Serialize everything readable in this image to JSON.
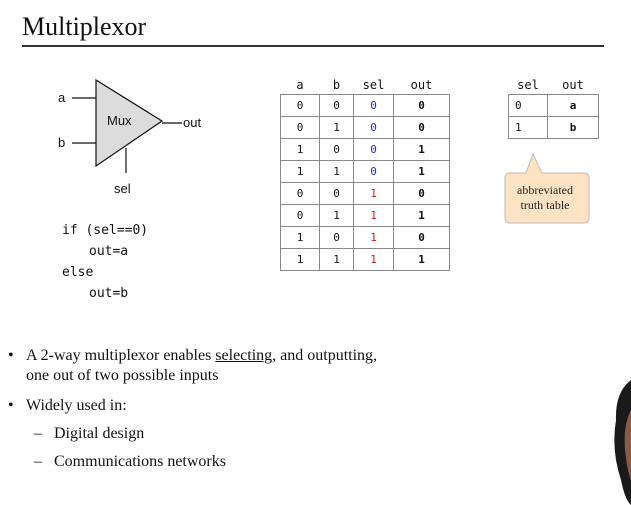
{
  "slide": {
    "title": "Multiplexor"
  },
  "mux": {
    "label": "Mux",
    "input_a": "a",
    "input_b": "b",
    "output": "out",
    "select": "sel"
  },
  "code": {
    "line1": "if (sel==0)",
    "line2": "out=a",
    "line3": "else",
    "line4": "out=b"
  },
  "truth_table": {
    "headers": [
      "a",
      "b",
      "sel",
      "out"
    ],
    "rows": [
      [
        "0",
        "0",
        "0",
        "0"
      ],
      [
        "0",
        "1",
        "0",
        "0"
      ],
      [
        "1",
        "0",
        "0",
        "1"
      ],
      [
        "1",
        "1",
        "0",
        "1"
      ],
      [
        "0",
        "0",
        "1",
        "0"
      ],
      [
        "0",
        "1",
        "1",
        "1"
      ],
      [
        "1",
        "0",
        "1",
        "0"
      ],
      [
        "1",
        "1",
        "1",
        "1"
      ]
    ],
    "sel_color_0": "#1f2fd6",
    "sel_color_1": "#cc1a1a"
  },
  "abbrev_table": {
    "headers": [
      "sel",
      "out"
    ],
    "rows": [
      [
        "0",
        "a"
      ],
      [
        "1",
        "b"
      ]
    ]
  },
  "callout": {
    "line1": "abbreviated",
    "line2": "truth table",
    "fill_color": "#fde3c4"
  },
  "bullets": {
    "b1_pre": "A 2-way multiplexor enables ",
    "b1_underlined": "selecting",
    "b1_post": ", and outputting,",
    "b1_line2": "one out of two possible inputs",
    "b2": "Widely used in:",
    "sub1": "Digital design",
    "sub2": "Communications networks"
  }
}
